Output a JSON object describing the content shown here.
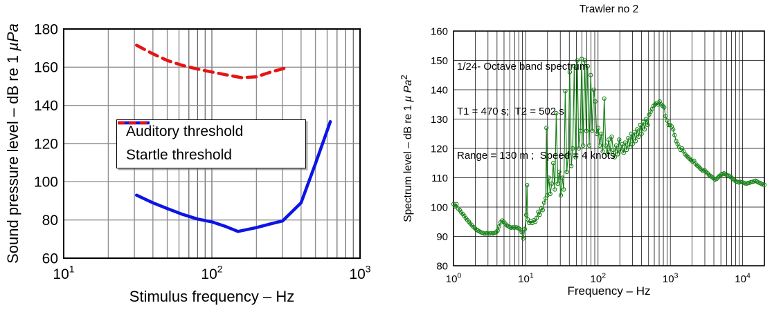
{
  "chart_data": [
    {
      "id": "thresholds",
      "type": "line",
      "xscale": "log",
      "xlabel": "Stimulus frequency – Hz",
      "ylabel_parts": {
        "prefix": "Sound pressure level – dB re 1  ",
        "unit_italic": "µPa",
        "unit_sup": ""
      },
      "xlim": [
        10,
        1000
      ],
      "ylim": [
        60,
        180
      ],
      "yticks": [
        60,
        80,
        100,
        120,
        140,
        160,
        180
      ],
      "xtick_exponents": [
        1,
        2,
        3
      ],
      "grid": true,
      "legend_position": "inside-lower-center",
      "series": [
        {
          "name": "Auditory threshold",
          "color": "#0d14e6",
          "style": "solid",
          "width": 4.5,
          "points": [
            [
              31,
              93
            ],
            [
              40,
              89
            ],
            [
              50,
              86
            ],
            [
              63,
              83
            ],
            [
              80,
              80.5
            ],
            [
              100,
              79
            ],
            [
              125,
              76.5
            ],
            [
              150,
              74
            ],
            [
              200,
              76
            ],
            [
              250,
              78
            ],
            [
              300,
              79.5
            ],
            [
              400,
              89
            ],
            [
              500,
              109.5
            ],
            [
              630,
              131.5
            ]
          ]
        },
        {
          "name": "Startle threshold",
          "color": "#e61414",
          "style": "dashed",
          "width": 4.5,
          "points": [
            [
              31,
              171.5
            ],
            [
              40,
              167
            ],
            [
              50,
              163.5
            ],
            [
              63,
              161
            ],
            [
              80,
              159
            ],
            [
              100,
              157.5
            ],
            [
              125,
              156
            ],
            [
              160,
              154.5
            ],
            [
              200,
              155
            ],
            [
              250,
              157.5
            ],
            [
              330,
              160
            ]
          ]
        }
      ]
    },
    {
      "id": "trawler-spectrum",
      "title": "Trawler no 2",
      "type": "line",
      "xscale": "log",
      "xlabel": "Frequency – Hz",
      "ylabel_parts": {
        "prefix": "Spectrum level – dB re 1 ",
        "unit_italic": "µ Pa",
        "unit_sup": "2"
      },
      "annotation_lines": [
        "1/24- Octave band spectrum",
        "T1 = 470 s;  T2 = 502 s",
        "Range = 130 m ;  Speed = 4 knots"
      ],
      "xlim": [
        1,
        20000
      ],
      "ylim": [
        80,
        160
      ],
      "yticks": [
        80,
        90,
        100,
        110,
        120,
        130,
        140,
        150,
        160
      ],
      "xtick_exponents": [
        0,
        1,
        2,
        3,
        4
      ],
      "grid": true,
      "series": [
        {
          "name": "1/24-octave band spectrum",
          "color": "#178217",
          "style": "solid",
          "width": 1.2,
          "marker": "circle",
          "points": [
            [
              1.0,
              101
            ],
            [
              1.05,
              100.2
            ],
            [
              1.1,
              101
            ],
            [
              1.16,
              99.5
            ],
            [
              1.22,
              99
            ],
            [
              1.28,
              98.2
            ],
            [
              1.35,
              97.6
            ],
            [
              1.41,
              97
            ],
            [
              1.48,
              96.2
            ],
            [
              1.55,
              95.6
            ],
            [
              1.63,
              95
            ],
            [
              1.71,
              94.4
            ],
            [
              1.8,
              93.8
            ],
            [
              1.89,
              93.2
            ],
            [
              1.98,
              92.8
            ],
            [
              2.08,
              92.3
            ],
            [
              2.18,
              92
            ],
            [
              2.29,
              91.7
            ],
            [
              2.4,
              91.4
            ],
            [
              2.52,
              91.2
            ],
            [
              2.64,
              91
            ],
            [
              2.77,
              91
            ],
            [
              2.91,
              91.1
            ],
            [
              3.05,
              91
            ],
            [
              3.2,
              91
            ],
            [
              3.36,
              91.1
            ],
            [
              3.53,
              91
            ],
            [
              3.7,
              91.2
            ],
            [
              3.89,
              91.4
            ],
            [
              4.08,
              92
            ],
            [
              4.28,
              93.4
            ],
            [
              4.49,
              94.8
            ],
            [
              4.71,
              95.4
            ],
            [
              4.94,
              95
            ],
            [
              5.19,
              94.4
            ],
            [
              5.44,
              93.8
            ],
            [
              5.71,
              93.5
            ],
            [
              5.99,
              93.2
            ],
            [
              6.29,
              93
            ],
            [
              6.6,
              93.1
            ],
            [
              6.92,
              93
            ],
            [
              7.26,
              93.1
            ],
            [
              7.62,
              93
            ],
            [
              8.0,
              92.7
            ],
            [
              8.39,
              92.4
            ],
            [
              8.8,
              91.4
            ],
            [
              9.23,
              89.3
            ],
            [
              9.68,
              92.5
            ],
            [
              10.15,
              97.3
            ],
            [
              10.4,
              107.5
            ],
            [
              10.65,
              95.8
            ],
            [
              11.17,
              94.6
            ],
            [
              11.72,
              95.2
            ],
            [
              12.29,
              94.6
            ],
            [
              12.89,
              95.5
            ],
            [
              13.52,
              95
            ],
            [
              14.18,
              96.3
            ],
            [
              14.87,
              98.4
            ],
            [
              15.6,
              97.4
            ],
            [
              16.36,
              99.6
            ],
            [
              17.16,
              99
            ],
            [
              18.0,
              101.5
            ],
            [
              18.88,
              103
            ],
            [
              19.3,
              127
            ],
            [
              19.8,
              104
            ],
            [
              20.8,
              110
            ],
            [
              21.8,
              104.5
            ],
            [
              22.9,
              108
            ],
            [
              24.0,
              115
            ],
            [
              25.2,
              106
            ],
            [
              26.4,
              132
            ],
            [
              27.7,
              108
            ],
            [
              29.0,
              112
            ],
            [
              30.5,
              104
            ],
            [
              32.0,
              110
            ],
            [
              33.5,
              106
            ],
            [
              35.2,
              139.5
            ],
            [
              36.9,
              112
            ],
            [
              38.7,
              118
            ],
            [
              40.6,
              146
            ],
            [
              42.6,
              114
            ],
            [
              44.6,
              120
            ],
            [
              46.8,
              148
            ],
            [
              49.1,
              117
            ],
            [
              51.5,
              150
            ],
            [
              54.0,
              120
            ],
            [
              56.7,
              126
            ],
            [
              59.4,
              150.5
            ],
            [
              62.3,
              121
            ],
            [
              65.4,
              150
            ],
            [
              68.6,
              126
            ],
            [
              71.9,
              148
            ],
            [
              75.4,
              121
            ],
            [
              79.1,
              145
            ],
            [
              83.0,
              126
            ],
            [
              87.1,
              140
            ],
            [
              91.3,
              136
            ],
            [
              95.8,
              125
            ],
            [
              100.5,
              127
            ],
            [
              105.4,
              121
            ],
            [
              110.5,
              125
            ],
            [
              115.9,
              119
            ],
            [
              121.6,
              137
            ],
            [
              127.5,
              121
            ],
            [
              133.7,
              118
            ],
            [
              140.3,
              123
            ],
            [
              147.1,
              119
            ],
            [
              154.3,
              124
            ],
            [
              161.9,
              119.5
            ],
            [
              169.8,
              117
            ],
            [
              178.1,
              121
            ],
            [
              186.8,
              118
            ],
            [
              195.9,
              123
            ],
            [
              205.5,
              119
            ],
            [
              215.5,
              121.5
            ],
            [
              226.1,
              118.5
            ],
            [
              237.1,
              122
            ],
            [
              248.7,
              119.5
            ],
            [
              260.9,
              123.5
            ],
            [
              273.6,
              120.5
            ],
            [
              287.0,
              125
            ],
            [
              301.0,
              121.5
            ],
            [
              315.7,
              125.5
            ],
            [
              331.1,
              122.5
            ],
            [
              347.3,
              126.5
            ],
            [
              364.3,
              124
            ],
            [
              382.1,
              128
            ],
            [
              400.8,
              125
            ],
            [
              420.4,
              129
            ],
            [
              440.9,
              126.5
            ],
            [
              462.4,
              130
            ],
            [
              485.0,
              128
            ],
            [
              508.7,
              131.5
            ],
            [
              533.6,
              132.5
            ],
            [
              559.7,
              133.5
            ],
            [
              587.0,
              134.5
            ],
            [
              615.7,
              135
            ],
            [
              645.8,
              135.5
            ],
            [
              677.4,
              135
            ],
            [
              710.5,
              136
            ],
            [
              745.2,
              135
            ],
            [
              781.6,
              134.5
            ],
            [
              819.8,
              134
            ],
            [
              859.9,
              131
            ],
            [
              901.9,
              129.5
            ],
            [
              946.0,
              128
            ],
            [
              992.2,
              128
            ],
            [
              1040.7,
              127.5
            ],
            [
              1091.6,
              126.5
            ],
            [
              1144.9,
              124.5
            ],
            [
              1200.9,
              122.5
            ],
            [
              1259.6,
              121.5
            ],
            [
              1321.2,
              120.5
            ],
            [
              1385.7,
              119.5
            ],
            [
              1453.5,
              120
            ],
            [
              1524.5,
              119
            ],
            [
              1599.0,
              118
            ],
            [
              1677.2,
              117.5
            ],
            [
              1759.2,
              117
            ],
            [
              1845.2,
              116.5
            ],
            [
              1935.4,
              116
            ],
            [
              2030.0,
              115.5
            ],
            [
              2129.2,
              115.8
            ],
            [
              2233.3,
              114.8
            ],
            [
              2342.5,
              114.2
            ],
            [
              2457.0,
              113.8
            ],
            [
              2577.1,
              113.2
            ],
            [
              2703.1,
              112.8
            ],
            [
              2835.3,
              112.3
            ],
            [
              2973.9,
              112.6
            ],
            [
              3119.3,
              112
            ],
            [
              3271.8,
              111.5
            ],
            [
              3431.7,
              111
            ],
            [
              3599.5,
              110.6
            ],
            [
              3775.5,
              110.2
            ],
            [
              3960.1,
              109.8
            ],
            [
              4153.7,
              109.4
            ],
            [
              4356.8,
              109.6
            ],
            [
              4569.8,
              110.1
            ],
            [
              4793.2,
              110.6
            ],
            [
              5027.5,
              111
            ],
            [
              5273.3,
              111.3
            ],
            [
              5531.1,
              111.5
            ],
            [
              5801.5,
              111.2
            ],
            [
              6085.2,
              110.9
            ],
            [
              6382.7,
              110.7
            ],
            [
              6694.7,
              110.4
            ],
            [
              7022.0,
              110.1
            ],
            [
              7365.4,
              109.6
            ],
            [
              7725.4,
              109.1
            ],
            [
              8103.1,
              108.8
            ],
            [
              8499.2,
              108.5
            ],
            [
              8914.7,
              108.4
            ],
            [
              9350.6,
              108.6
            ],
            [
              9807.7,
              108.5
            ],
            [
              10287,
              108.3
            ],
            [
              10790,
              108.1
            ],
            [
              11318,
              108
            ],
            [
              11871,
              108.2
            ],
            [
              12451,
              108.3
            ],
            [
              13060,
              108.5
            ],
            [
              13699,
              108.6
            ],
            [
              14368,
              108.8
            ],
            [
              15071,
              109
            ],
            [
              15808,
              108.7
            ],
            [
              16581,
              108.4
            ],
            [
              17391,
              108.2
            ],
            [
              18241,
              107.9
            ],
            [
              19133,
              107.7
            ],
            [
              20000,
              107.6
            ]
          ]
        }
      ]
    }
  ]
}
